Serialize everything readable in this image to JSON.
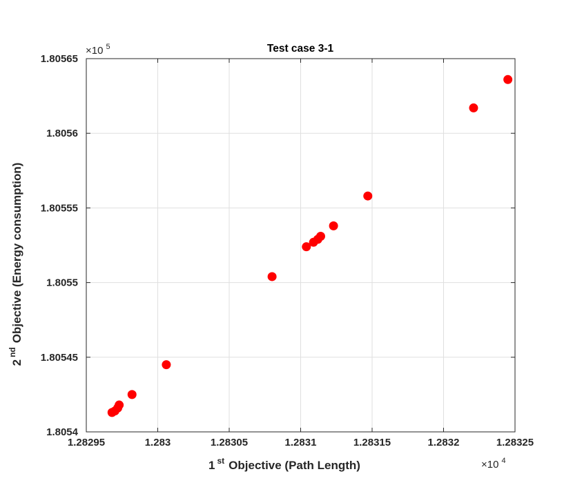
{
  "chart_data": {
    "type": "scatter",
    "title": "Test case 3-1",
    "xlabel": {
      "sup_prefix": "1",
      "sup": "st",
      "text": "Objective (Path Length)"
    },
    "ylabel": {
      "sup_prefix": "2",
      "sup": "nd",
      "text": "Objective (Energy consumption)"
    },
    "x_multiplier": {
      "base": "×10",
      "exp": "4"
    },
    "y_multiplier": {
      "base": "×10",
      "exp": "5"
    },
    "xlim": [
      1.28295,
      1.28325
    ],
    "ylim": [
      1.8054,
      1.80565
    ],
    "x_tick_values": [
      1.28295,
      1.283,
      1.28305,
      1.2831,
      1.28315,
      1.2832,
      1.28325
    ],
    "x_tick_labels": [
      "1.28295",
      "1.283",
      "1.28305",
      "1.2831",
      "1.28315",
      "1.2832",
      "1.28325"
    ],
    "y_tick_values": [
      1.8054,
      1.80545,
      1.8055,
      1.80555,
      1.8056,
      1.80565
    ],
    "y_tick_labels": [
      "1.8054",
      "1.80545",
      "1.8055",
      "1.80555",
      "1.8056",
      "1.80565"
    ],
    "grid": true,
    "marker_color": "#ff0000",
    "series": [
      {
        "x": [
          1.282968,
          1.28297,
          1.282972,
          1.282973,
          1.282982,
          1.283006,
          1.28308,
          1.283104,
          1.283109,
          1.283112,
          1.283114,
          1.283123,
          1.283147,
          1.283221,
          1.283245
        ],
        "y": [
          1.805413,
          1.805414,
          1.805416,
          1.805418,
          1.805425,
          1.805445,
          1.805504,
          1.805524,
          1.805527,
          1.805529,
          1.805531,
          1.805538,
          1.805558,
          1.805617,
          1.805636
        ]
      }
    ]
  }
}
